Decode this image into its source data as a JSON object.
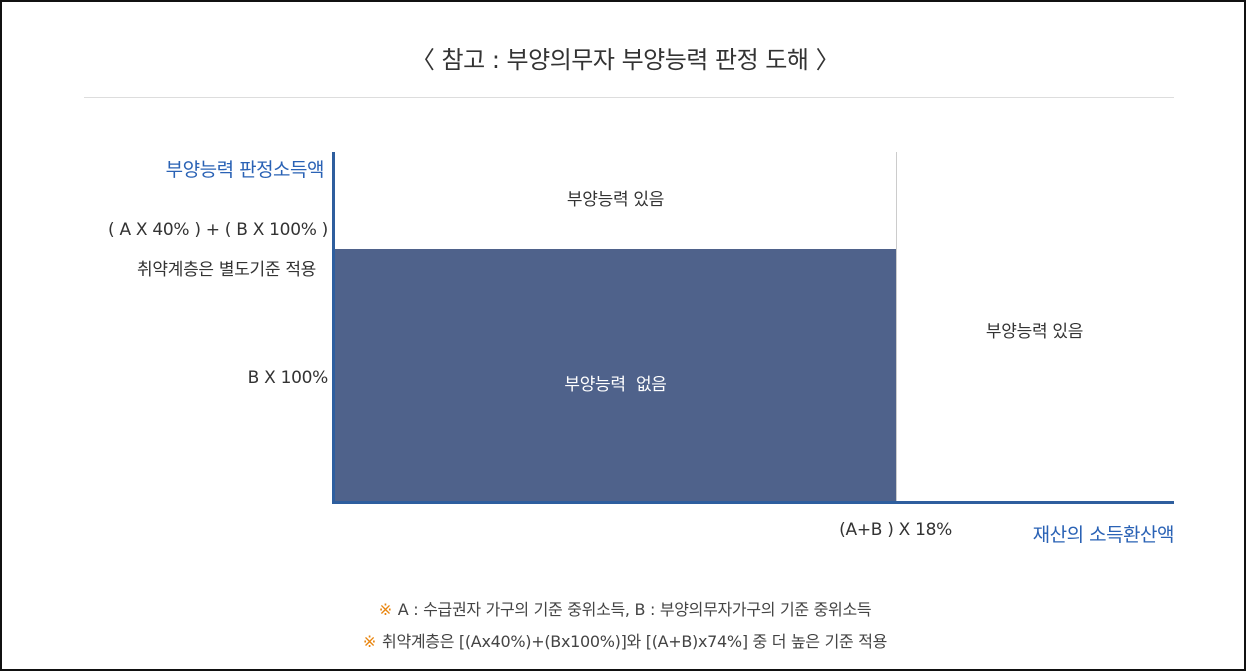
{
  "title": "〈 참고 : 부양의무자 부양능력 판정 도해 〉",
  "axes": {
    "y_title": "부양능력 판정소득액",
    "x_title": "재산의 소득환산액",
    "y_tick_upper_line1": "( A X 40% ) + ( B X 100% )",
    "y_tick_upper_line2": "취약계층은 별도기준 적용",
    "y_tick_lower": "B X 100%",
    "x_tick": "(A+B ) X 18%"
  },
  "regions": {
    "top_left": "부양능력 있음",
    "right": "부양능력 있음",
    "dark": "부양능력  없음"
  },
  "notes": [
    {
      "mark": "※",
      "text": "A : 수급권자 가구의 기준 중위소득, B : 부양의무자가구의 기준 중위소득"
    },
    {
      "mark": "※",
      "text": "취약계층은 [(Ax40%)+(Bx100%)]와 [(A+B)x74%] 중 더 높은 기준 적용"
    }
  ],
  "colors": {
    "axis": "#2e5e9e",
    "axis_title": "#2a62b5",
    "dark_region": "#4f628b",
    "note_mark": "#e8850f"
  }
}
